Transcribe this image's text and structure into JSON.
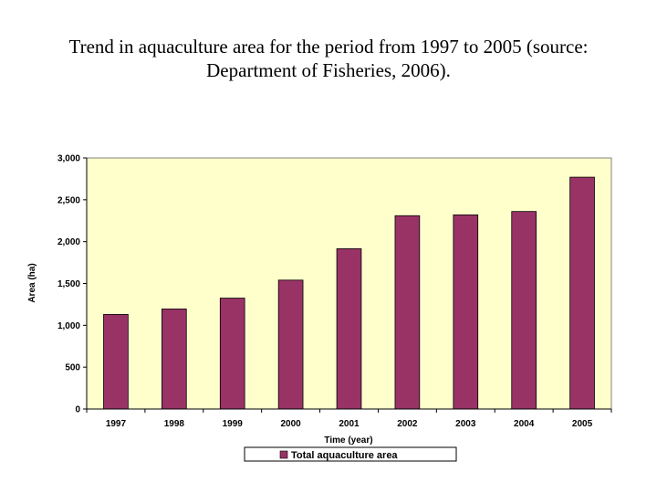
{
  "slide": {
    "title_line1": "Trend in aquaculture area for the period from 1997 to 2005 (source:",
    "title_line2": "Department of Fisheries, 2006)."
  },
  "chart_data": {
    "type": "bar",
    "categories": [
      "1997",
      "1998",
      "1999",
      "2000",
      "2001",
      "2002",
      "2003",
      "2004",
      "2005"
    ],
    "series": [
      {
        "name": "Total aquaculture area",
        "values": [
          1130,
          1195,
          1325,
          1540,
          1915,
          2310,
          2320,
          2360,
          2770
        ]
      }
    ],
    "xlabel": "Time (year)",
    "ylabel": "Area (ha)",
    "ylim": [
      0,
      3000
    ],
    "yticks": [
      0,
      500,
      1000,
      1500,
      2000,
      2500,
      3000
    ],
    "ytick_labels": [
      "0",
      "500",
      "1,000",
      "1,500",
      "2,000",
      "2,500",
      "3,000"
    ],
    "legend_position": "bottom",
    "grid": false,
    "colors": {
      "bar": "#993366",
      "plot_background": "#FFFFCC",
      "axis": "#000000"
    }
  }
}
